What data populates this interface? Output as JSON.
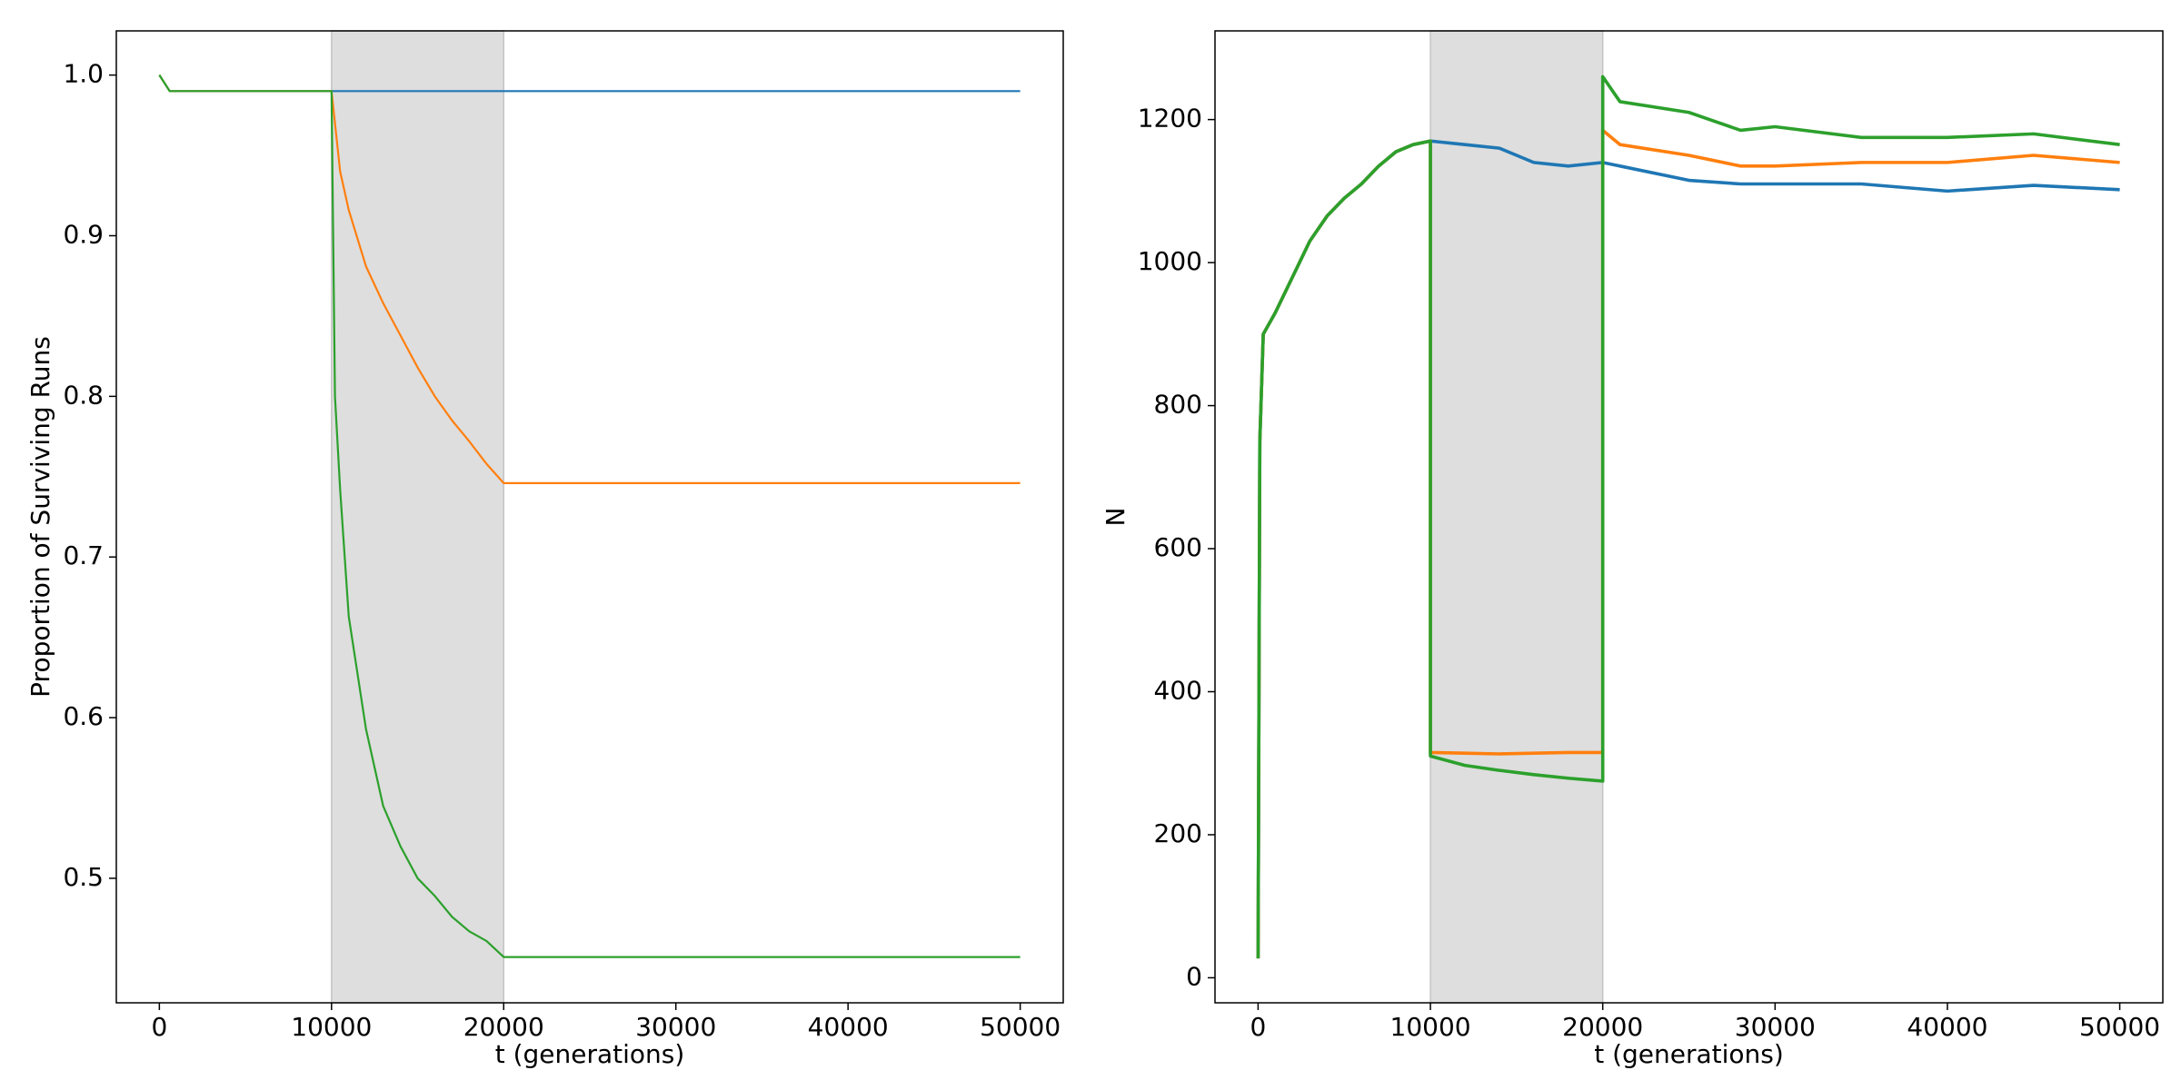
{
  "chart_data": [
    {
      "type": "line",
      "x_label": "t (generations)",
      "y_label": "Proportion of Surviving Runs",
      "x": [
        0,
        600,
        10000,
        10200,
        10500,
        11000,
        12000,
        13000,
        14000,
        15000,
        16000,
        17000,
        18000,
        19000,
        20000,
        50000
      ],
      "series": [
        {
          "color": "#1f77b4",
          "values": [
            1.0,
            0.99,
            0.99,
            0.99,
            0.99,
            0.99,
            0.99,
            0.99,
            0.99,
            0.99,
            0.99,
            0.99,
            0.99,
            0.99,
            0.99,
            0.99
          ]
        },
        {
          "color": "#ff7f0e",
          "values": [
            1.0,
            0.99,
            0.99,
            0.97,
            0.94,
            0.916,
            0.881,
            0.858,
            0.838,
            0.818,
            0.8,
            0.785,
            0.772,
            0.758,
            0.746,
            0.746
          ]
        },
        {
          "color": "#2ca02c",
          "values": [
            1.0,
            0.99,
            0.99,
            0.8,
            0.742,
            0.663,
            0.593,
            0.545,
            0.52,
            0.5,
            0.489,
            0.476,
            0.467,
            0.461,
            0.451,
            0.451
          ]
        }
      ],
      "shaded_span": {
        "x": [
          10000,
          20000
        ],
        "color": "#dedede"
      },
      "xlim": [
        -2500,
        52500
      ],
      "xticks": [
        0,
        10000,
        20000,
        30000,
        40000,
        50000
      ],
      "ylim": [
        0.4225,
        1.0275
      ],
      "yticks": [
        0.5,
        0.6,
        0.7,
        0.8,
        0.9,
        {
          "value": 1,
          "label": "1.0"
        }
      ]
    },
    {
      "type": "line",
      "x_label": "t (generations)",
      "y_label": "N",
      "x": [
        0,
        100,
        300,
        1000,
        2000,
        3000,
        4000,
        5000,
        6000,
        7000,
        8000,
        9000,
        10000,
        10000,
        12000,
        14000,
        16000,
        18000,
        20000,
        20000,
        21000,
        25000,
        28000,
        30000,
        35000,
        40000,
        45000,
        50000
      ],
      "series": [
        {
          "color": "#1f77b4",
          "values": [
            27,
            750,
            900,
            930,
            980,
            1030,
            1065,
            1090,
            1110,
            1135,
            1155,
            1165,
            1170,
            1170,
            1165,
            1160,
            1140,
            1135,
            1140,
            1140,
            1135,
            1115,
            1110,
            1110,
            1110,
            1100,
            1108,
            1102
          ]
        },
        {
          "color": "#ff7f0e",
          "values": [
            27,
            750,
            900,
            930,
            980,
            1030,
            1065,
            1090,
            1110,
            1135,
            1155,
            1165,
            1170,
            315,
            314,
            313,
            314,
            315,
            315,
            1185,
            1165,
            1150,
            1135,
            1135,
            1140,
            1140,
            1150,
            1140
          ]
        },
        {
          "color": "#2ca02c",
          "values": [
            27,
            750,
            900,
            930,
            980,
            1030,
            1065,
            1090,
            1110,
            1135,
            1155,
            1165,
            1170,
            310,
            297,
            290,
            284,
            279,
            275,
            1260,
            1225,
            1210,
            1185,
            1190,
            1175,
            1175,
            1180,
            1165
          ]
        }
      ],
      "shaded_span": {
        "x": [
          10000,
          20000
        ],
        "color": "#dedede"
      },
      "xlim": [
        -2500,
        52500
      ],
      "xticks": [
        0,
        10000,
        20000,
        30000,
        40000,
        50000
      ],
      "ylim": [
        -35,
        1324
      ],
      "yticks": [
        0,
        200,
        400,
        600,
        800,
        1000,
        1200
      ]
    }
  ]
}
